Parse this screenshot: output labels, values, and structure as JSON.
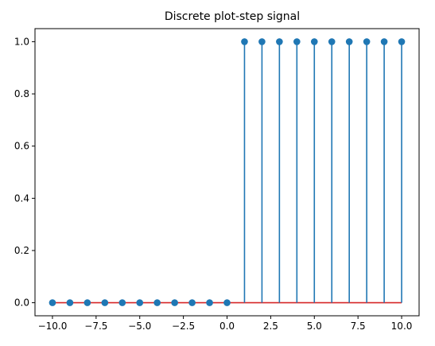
{
  "chart_data": {
    "type": "stem",
    "title": "Discrete plot-step signal",
    "xlabel": "",
    "ylabel": "",
    "x": [
      -10,
      -9,
      -8,
      -7,
      -6,
      -5,
      -4,
      -3,
      -2,
      -1,
      0,
      1,
      2,
      3,
      4,
      5,
      6,
      7,
      8,
      9,
      10
    ],
    "y": [
      0,
      0,
      0,
      0,
      0,
      0,
      0,
      0,
      0,
      0,
      0,
      1,
      1,
      1,
      1,
      1,
      1,
      1,
      1,
      1,
      1
    ],
    "xlim": [
      -11,
      11
    ],
    "ylim": [
      -0.05,
      1.05
    ],
    "xticks": [
      -10,
      -7.5,
      -5,
      -2.5,
      0,
      2.5,
      5,
      7.5,
      10
    ],
    "xtick_labels": [
      "−10.0",
      "−7.5",
      "−5.0",
      "−2.5",
      "0.0",
      "2.5",
      "5.0",
      "7.5",
      "10.0"
    ],
    "yticks": [
      0,
      0.2,
      0.4,
      0.6,
      0.8,
      1.0
    ],
    "ytick_labels": [
      "0.0",
      "0.2",
      "0.4",
      "0.6",
      "0.8",
      "1.0"
    ],
    "grid": false,
    "legend": "none",
    "colors": {
      "stem": "#1f77b4",
      "marker": "#1f77b4",
      "baseline": "#d62728",
      "axes": "#000000"
    }
  }
}
